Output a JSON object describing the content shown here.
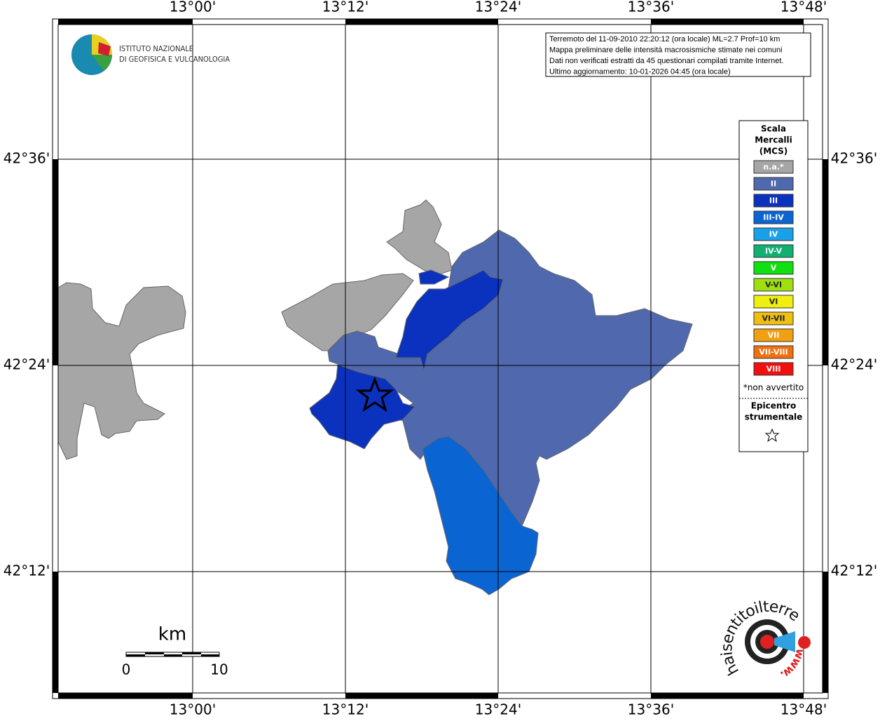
{
  "header": {
    "institute": [
      "ISTITUTO NAZIONALE",
      "DI GEOFISICA E VULCANOLOGIA"
    ],
    "info": [
      "Terremoto del 11-09-2010 22:20:12 (ora locale) ML=2.7 Prof=10 km",
      "Mappa preliminare delle intensità macrosismiche stimate nei comuni",
      "Dati non verificati estratti da 45 questionari compilati tramite Internet.",
      "Ultimo aggiornamento: 10-01-2026 04:45 (ora locale)"
    ]
  },
  "axes": {
    "longitude": [
      "13°00'",
      "13°12'",
      "13°24'",
      "13°36'",
      "13°48'"
    ],
    "latitude": [
      "42°36'",
      "42°24'",
      "42°12'"
    ]
  },
  "legend": {
    "title": [
      "Scala",
      "Mercalli",
      "(MCS)"
    ],
    "classes": [
      {
        "label": "n.a.*",
        "color": "#a6a6a6"
      },
      {
        "label": "II",
        "color": "#5068ad"
      },
      {
        "label": "III",
        "color": "#0a32be"
      },
      {
        "label": "III-IV",
        "color": "#0a64d2"
      },
      {
        "label": "IV",
        "color": "#1aa0e6"
      },
      {
        "label": "IV-V",
        "color": "#10b070"
      },
      {
        "label": "V",
        "color": "#10e010"
      },
      {
        "label": "V-VI",
        "color": "#a0e010"
      },
      {
        "label": "VI",
        "color": "#f0f010"
      },
      {
        "label": "VI-VII",
        "color": "#f0c010"
      },
      {
        "label": "VII",
        "color": "#f0a010"
      },
      {
        "label": "VII-VIII",
        "color": "#f07010"
      },
      {
        "label": "VIII",
        "color": "#f01010"
      }
    ],
    "note": "*non avvertito",
    "epicenter": [
      "Epicentro",
      "strumentale"
    ]
  },
  "scale_bar": {
    "unit": "km",
    "ticks": [
      0,
      10
    ]
  },
  "badge": {
    "text": "haisentitoilterremoto.it",
    "www": "www."
  }
}
